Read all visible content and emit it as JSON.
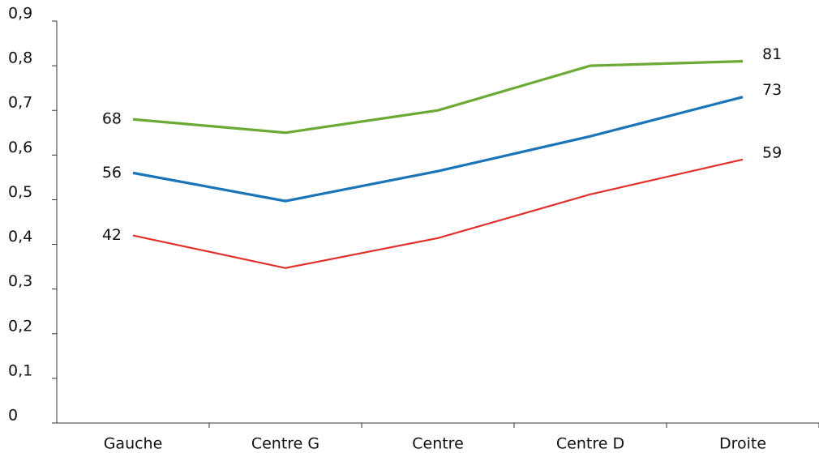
{
  "chart_data": {
    "type": "line",
    "categories": [
      "Gauche",
      "Centre G",
      "Centre",
      "Centre D",
      "Droite"
    ],
    "series": [
      {
        "color": "#6aaa35",
        "values": [
          0.68,
          0.65,
          0.7,
          0.8,
          0.81
        ],
        "value_labels": [
          "68",
          null,
          null,
          null,
          "81"
        ]
      },
      {
        "color": "#1a75b8",
        "values": [
          0.56,
          0.497,
          0.564,
          0.642,
          0.73
        ],
        "value_labels": [
          "56",
          null,
          null,
          null,
          "73"
        ]
      },
      {
        "color": "#e0312a",
        "values": [
          0.42,
          0.347,
          0.414,
          0.512,
          0.59
        ],
        "value_labels": [
          "42",
          null,
          null,
          null,
          "59"
        ]
      }
    ],
    "ylim": [
      0,
      0.9
    ],
    "yticks": [
      0,
      {
        "value": 0.1,
        "label": "0,1"
      },
      {
        "value": 0.2,
        "label": "0,2"
      },
      {
        "value": 0.3,
        "label": "0,3"
      },
      {
        "value": 0.4,
        "label": "0,4"
      },
      {
        "value": 0.5,
        "label": "0,5"
      },
      {
        "value": 0.6,
        "label": "0,6"
      },
      {
        "value": 0.7,
        "label": "0,7"
      },
      {
        "value": 0.8,
        "label": "0,8"
      },
      {
        "value": 0.9,
        "label": "0,9"
      }
    ]
  }
}
